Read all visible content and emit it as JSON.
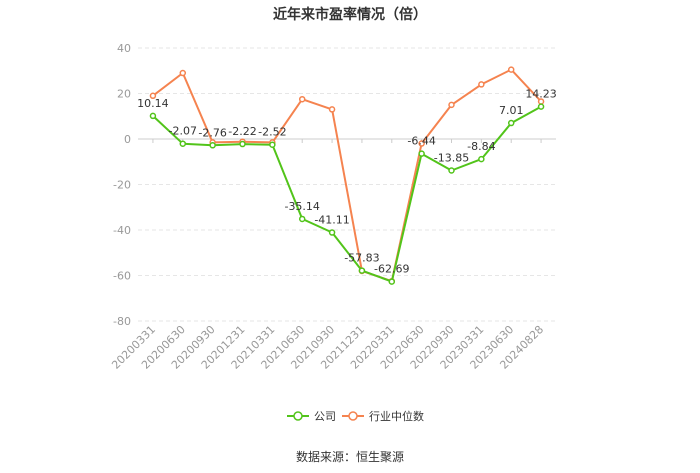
{
  "chart_data": {
    "type": "line",
    "title": "近年来市盈率情况（倍）",
    "categories": [
      "20200331",
      "20200630",
      "20200930",
      "20201231",
      "20210331",
      "20210630",
      "20210930",
      "20211231",
      "20220331",
      "20220630",
      "20220930",
      "20230331",
      "20230630",
      "20240828"
    ],
    "series": [
      {
        "name": "公司",
        "color": "#52c41a",
        "values": [
          10.14,
          -2.07,
          -2.76,
          -2.22,
          -2.52,
          -35.14,
          -41.11,
          -57.83,
          -62.69,
          -6.44,
          -13.85,
          -8.84,
          7.01,
          14.23
        ],
        "labels": [
          "10.14",
          "-2.07",
          "-2.76",
          "-2.22",
          "-2.52",
          "-35.14",
          "-41.11",
          "-57.83",
          "-62.69",
          "-6.44",
          "-13.85",
          "-8.84",
          "7.01",
          "14.23"
        ]
      },
      {
        "name": "行业中位数",
        "color": "#f5834f",
        "values": [
          19,
          29,
          -1.5,
          -1.2,
          -1.5,
          17.5,
          13,
          -58,
          -62.5,
          -2,
          15,
          24,
          30.5,
          16.5
        ]
      }
    ],
    "yticks": [
      40,
      20,
      0,
      -20,
      -40,
      -60,
      -80
    ],
    "ylim": [
      -80,
      40
    ],
    "grid": true,
    "legend_position": "bottom",
    "source": "数据来源：恒生聚源"
  }
}
